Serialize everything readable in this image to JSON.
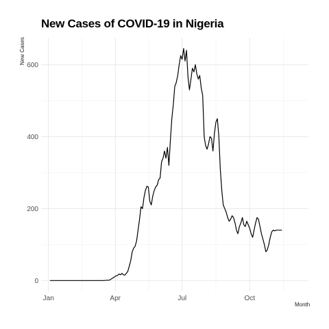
{
  "chart_data": {
    "type": "line",
    "title": "New Cases of COVID-19 in Nigeria",
    "xlabel": "Month",
    "ylabel": "New Cases",
    "x_tick_labels": [
      "Jan",
      "Apr",
      "Jul",
      "Oct"
    ],
    "x_tick_dates": [
      "2020-01-01",
      "2020-04-01",
      "2020-07-01",
      "2020-10-01"
    ],
    "y_ticks": [
      0,
      200,
      400,
      600
    ],
    "xlim": [
      "2019-12-22",
      "2020-12-20"
    ],
    "ylim": [
      -30,
      675
    ],
    "grid": true,
    "line_color": "#000000",
    "series": [
      {
        "x": [
          "2020-01-03",
          "2020-02-01",
          "2020-03-01",
          "2020-03-15",
          "2020-03-24",
          "2020-03-27",
          "2020-03-31",
          "2020-04-02",
          "2020-04-04",
          "2020-04-06",
          "2020-04-08",
          "2020-04-10",
          "2020-04-12",
          "2020-04-14",
          "2020-04-16",
          "2020-04-18",
          "2020-04-20",
          "2020-04-22",
          "2020-04-24",
          "2020-04-26",
          "2020-04-28",
          "2020-04-30",
          "2020-05-02",
          "2020-05-04",
          "2020-05-06",
          "2020-05-08",
          "2020-05-10",
          "2020-05-12",
          "2020-05-14",
          "2020-05-16",
          "2020-05-18",
          "2020-05-20",
          "2020-05-22",
          "2020-05-24",
          "2020-05-26",
          "2020-05-28",
          "2020-05-30",
          "2020-06-01",
          "2020-06-03",
          "2020-06-05",
          "2020-06-07",
          "2020-06-09",
          "2020-06-11",
          "2020-06-13",
          "2020-06-15",
          "2020-06-17",
          "2020-06-19",
          "2020-06-21",
          "2020-06-23",
          "2020-06-25",
          "2020-06-27",
          "2020-06-29",
          "2020-07-01",
          "2020-07-03",
          "2020-07-05",
          "2020-07-07",
          "2020-07-09",
          "2020-07-11",
          "2020-07-13",
          "2020-07-15",
          "2020-07-17",
          "2020-07-19",
          "2020-07-21",
          "2020-07-23",
          "2020-07-25",
          "2020-07-27",
          "2020-07-29",
          "2020-07-31",
          "2020-08-02",
          "2020-08-04",
          "2020-08-06",
          "2020-08-08",
          "2020-08-10",
          "2020-08-12",
          "2020-08-14",
          "2020-08-16",
          "2020-08-18",
          "2020-08-20",
          "2020-08-22",
          "2020-08-24",
          "2020-08-26",
          "2020-08-28",
          "2020-08-30",
          "2020-09-01",
          "2020-09-03",
          "2020-09-05",
          "2020-09-07",
          "2020-09-09",
          "2020-09-11",
          "2020-09-13",
          "2020-09-15",
          "2020-09-17",
          "2020-09-19",
          "2020-09-21",
          "2020-09-23",
          "2020-09-25",
          "2020-09-27",
          "2020-09-29",
          "2020-10-01",
          "2020-10-03",
          "2020-10-05",
          "2020-10-07",
          "2020-10-09",
          "2020-10-11",
          "2020-10-13",
          "2020-10-15",
          "2020-10-17",
          "2020-10-19",
          "2020-10-21",
          "2020-10-23",
          "2020-10-25",
          "2020-10-27",
          "2020-10-29",
          "2020-10-31",
          "2020-11-02",
          "2020-11-04",
          "2020-11-06",
          "2020-11-08",
          "2020-11-10",
          "2020-11-12",
          "2020-11-14"
        ],
        "y": [
          0,
          0,
          0,
          0,
          1,
          5,
          10,
          13,
          14,
          18,
          16,
          20,
          16,
          15,
          20,
          25,
          40,
          55,
          80,
          90,
          95,
          110,
          140,
          170,
          205,
          200,
          230,
          250,
          262,
          260,
          220,
          210,
          235,
          250,
          260,
          265,
          280,
          285,
          330,
          340,
          360,
          340,
          370,
          320,
          390,
          450,
          490,
          540,
          550,
          570,
          600,
          625,
          615,
          645,
          610,
          640,
          565,
          530,
          560,
          590,
          580,
          600,
          575,
          560,
          570,
          535,
          515,
          400,
          375,
          365,
          380,
          400,
          395,
          360,
          410,
          440,
          450,
          400,
          310,
          250,
          210,
          200,
          190,
          175,
          165,
          170,
          180,
          175,
          160,
          140,
          130,
          150,
          160,
          175,
          155,
          150,
          165,
          155,
          145,
          130,
          120,
          140,
          160,
          175,
          170,
          150,
          130,
          115,
          100,
          80,
          85,
          100,
          120,
          135,
          140,
          138,
          140,
          140,
          140,
          140,
          140
        ]
      }
    ]
  }
}
